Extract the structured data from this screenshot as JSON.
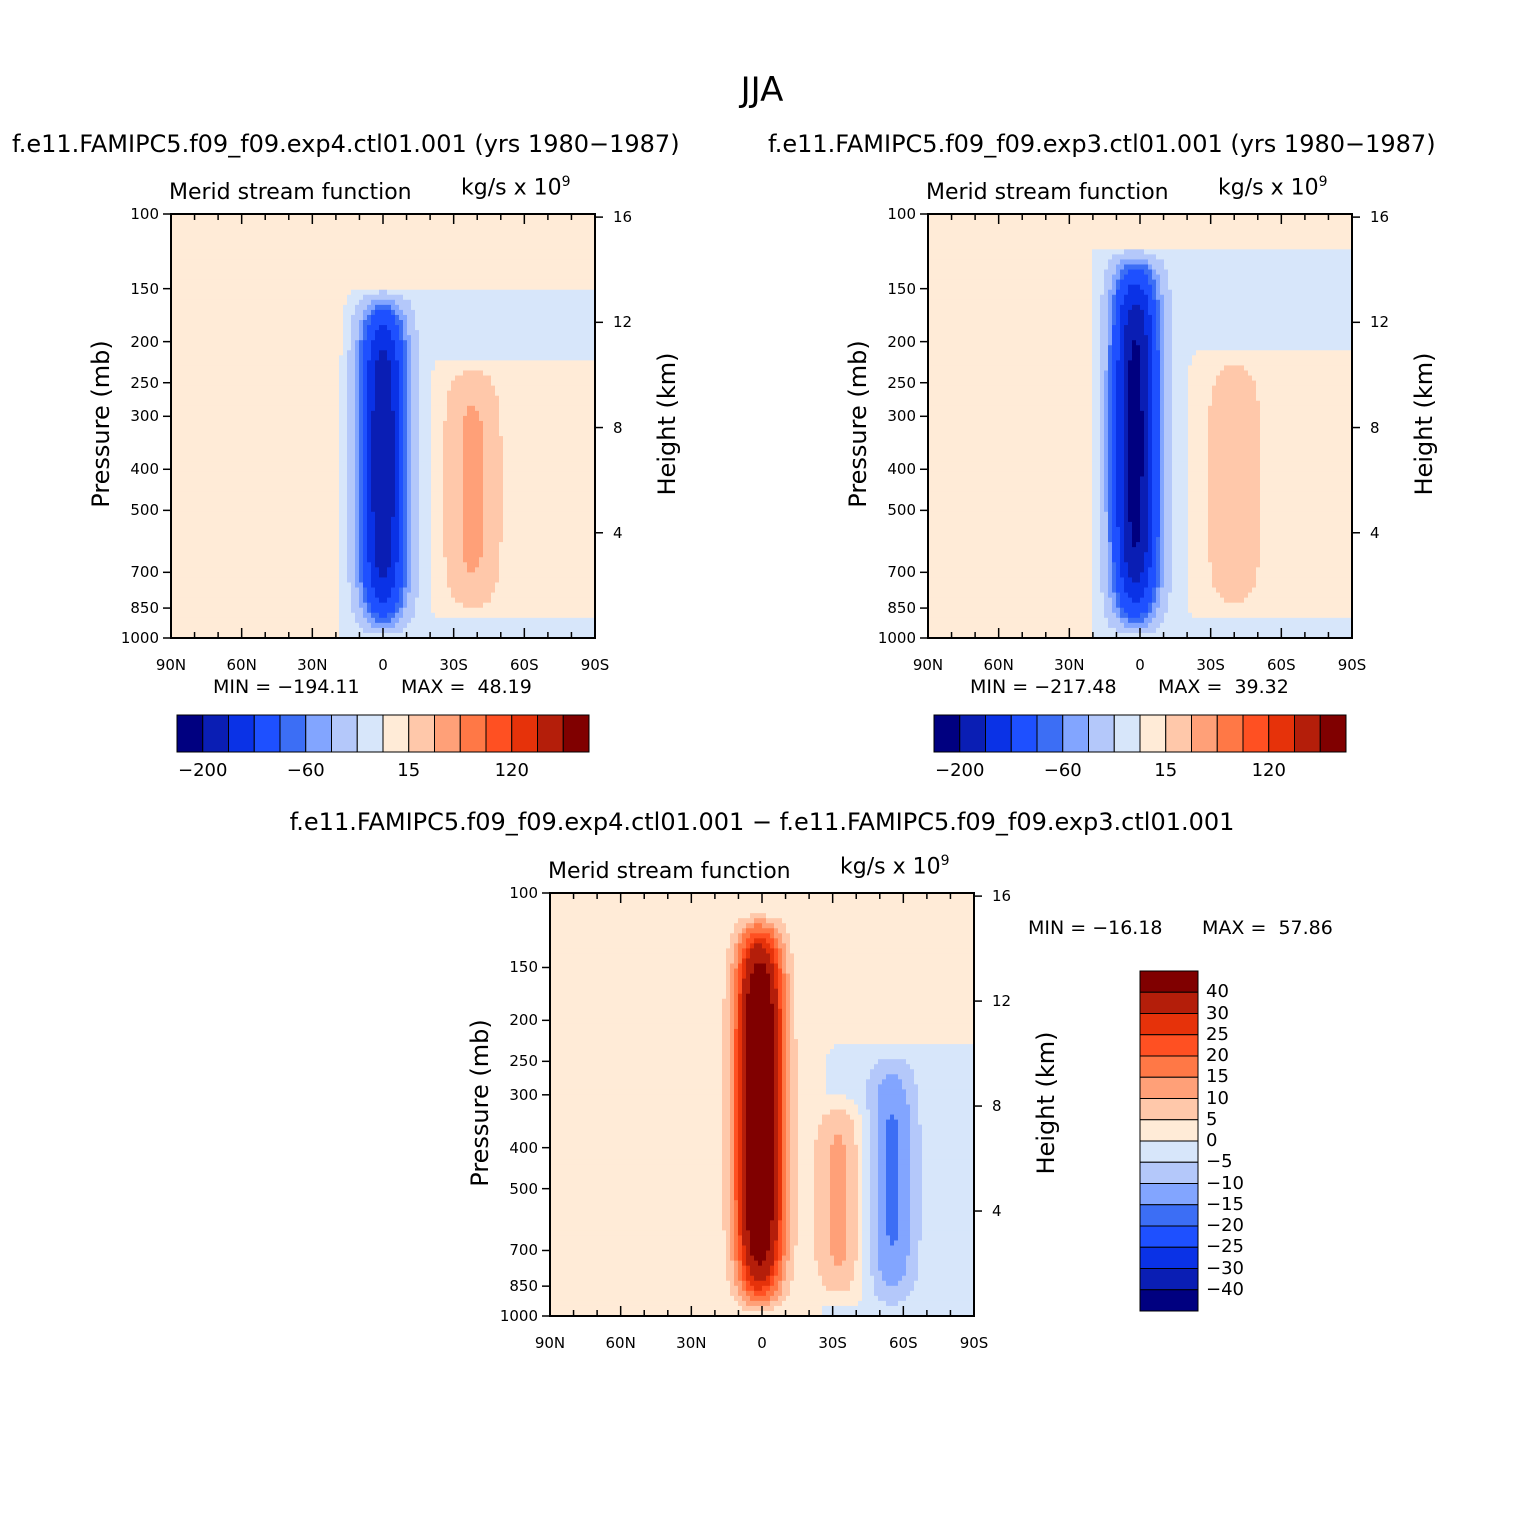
{
  "figure": {
    "season": "JJA",
    "left_title": "f.e11.FAMIPC5.f09_f09.exp4.ctl01.001 (yrs 1980−1987)",
    "right_title": "f.e11.FAMIPC5.f09_f09.exp3.ctl01.001 (yrs 1980−1987)",
    "diff_title": "f.e11.FAMIPC5.f09_f09.exp4.ctl01.001 − f.e11.FAMIPC5.f09_f09.exp3.ctl01.001"
  },
  "colors": {
    "full_scale": [
      "#000080",
      "#0a1eb4",
      "#0a32e6",
      "#1e50ff",
      "#3c6ef5",
      "#82a5ff",
      "#b4c8fa",
      "#d7e6fa",
      "#ffebd7",
      "#ffc8aa",
      "#ffa078",
      "#ff7846",
      "#ff5022",
      "#e6320a",
      "#b41e0a",
      "#800000"
    ],
    "diff_scale": [
      "#000080",
      "#0a1eb4",
      "#0a32e6",
      "#1e50ff",
      "#3c6ef5",
      "#82a5ff",
      "#b4c8fa",
      "#d7e6fa",
      "#ffebd7",
      "#ffc8aa",
      "#ffa078",
      "#ff7846",
      "#ff5022",
      "#e6320a",
      "#b41e0a",
      "#800000"
    ]
  },
  "chart_data": [
    {
      "type": "heatmap",
      "id": "exp4",
      "variable_title": "Merid stream function",
      "units": "kg/s x 10",
      "units_exp": "9",
      "ylabel": "Pressure (mb)",
      "ylabel_right": "Height (km)",
      "x_ticks": [
        "90N",
        "60N",
        "30N",
        "0",
        "30S",
        "60S",
        "90S"
      ],
      "y_ticks": [
        "100",
        "150",
        "200",
        "250",
        "300",
        "400",
        "500",
        "700",
        "850",
        "1000"
      ],
      "y_ticks_right": [
        "16",
        "12",
        "8",
        "4"
      ],
      "min_label": "MIN = −194.11",
      "max_label": "MAX =  48.19",
      "min": -194.11,
      "max": 48.19,
      "colorbar_labels": [
        "−200",
        "−60",
        "15",
        "120"
      ],
      "features": [
        {
          "kind": "cell",
          "center_lat": 0,
          "p_top": 150,
          "p_bottom": 1000,
          "peak": -194.11
        },
        {
          "kind": "cell",
          "center_lat": -38,
          "p_top": 220,
          "p_bottom": 900,
          "peak": 48.19
        },
        {
          "kind": "cell",
          "center_lat": 25,
          "p_top": 120,
          "p_bottom": 1000,
          "peak": 10
        }
      ]
    },
    {
      "type": "heatmap",
      "id": "exp3",
      "variable_title": "Merid stream function",
      "units": "kg/s x 10",
      "units_exp": "9",
      "ylabel": "Pressure (mb)",
      "ylabel_right": "Height (km)",
      "x_ticks": [
        "90N",
        "60N",
        "30N",
        "0",
        "30S",
        "60S",
        "90S"
      ],
      "y_ticks": [
        "100",
        "150",
        "200",
        "250",
        "300",
        "400",
        "500",
        "700",
        "850",
        "1000"
      ],
      "y_ticks_right": [
        "16",
        "12",
        "8",
        "4"
      ],
      "min_label": "MIN = −217.48",
      "max_label": "MAX =  39.32",
      "min": -217.48,
      "max": 39.32,
      "colorbar_labels": [
        "−200",
        "−60",
        "15",
        "120"
      ],
      "features": [
        {
          "kind": "cell",
          "center_lat": 2,
          "p_top": 120,
          "p_bottom": 1000,
          "peak": -217.48
        },
        {
          "kind": "cell",
          "center_lat": -40,
          "p_top": 210,
          "p_bottom": 900,
          "peak": 39.32
        },
        {
          "kind": "cell",
          "center_lat": 25,
          "p_top": 120,
          "p_bottom": 1000,
          "peak": 10
        }
      ]
    },
    {
      "type": "heatmap",
      "id": "diff",
      "variable_title": "Merid stream function",
      "units": "kg/s x 10",
      "units_exp": "9",
      "ylabel": "Pressure (mb)",
      "ylabel_right": "Height (km)",
      "x_ticks": [
        "90N",
        "60N",
        "30N",
        "0",
        "30S",
        "60S",
        "90S"
      ],
      "y_ticks": [
        "100",
        "150",
        "200",
        "250",
        "300",
        "400",
        "500",
        "700",
        "850",
        "1000"
      ],
      "y_ticks_right": [
        "16",
        "12",
        "8",
        "4"
      ],
      "min_label": "MIN = −16.18",
      "max_label": "MAX =  57.86",
      "min": -16.18,
      "max": 57.86,
      "colorbar_labels": [
        "40",
        "30",
        "25",
        "20",
        "15",
        "10",
        "5",
        "0",
        "−5",
        "−10",
        "−15",
        "−20",
        "−25",
        "−30",
        "−40"
      ],
      "features": [
        {
          "kind": "cell",
          "center_lat": 1,
          "p_top": 110,
          "p_bottom": 1000,
          "peak": 57.86
        },
        {
          "kind": "cell",
          "center_lat": -33,
          "p_top": 300,
          "p_bottom": 950,
          "peak": 12
        },
        {
          "kind": "cell",
          "center_lat": -55,
          "p_top": 230,
          "p_bottom": 1000,
          "peak": -16.18
        }
      ]
    }
  ]
}
